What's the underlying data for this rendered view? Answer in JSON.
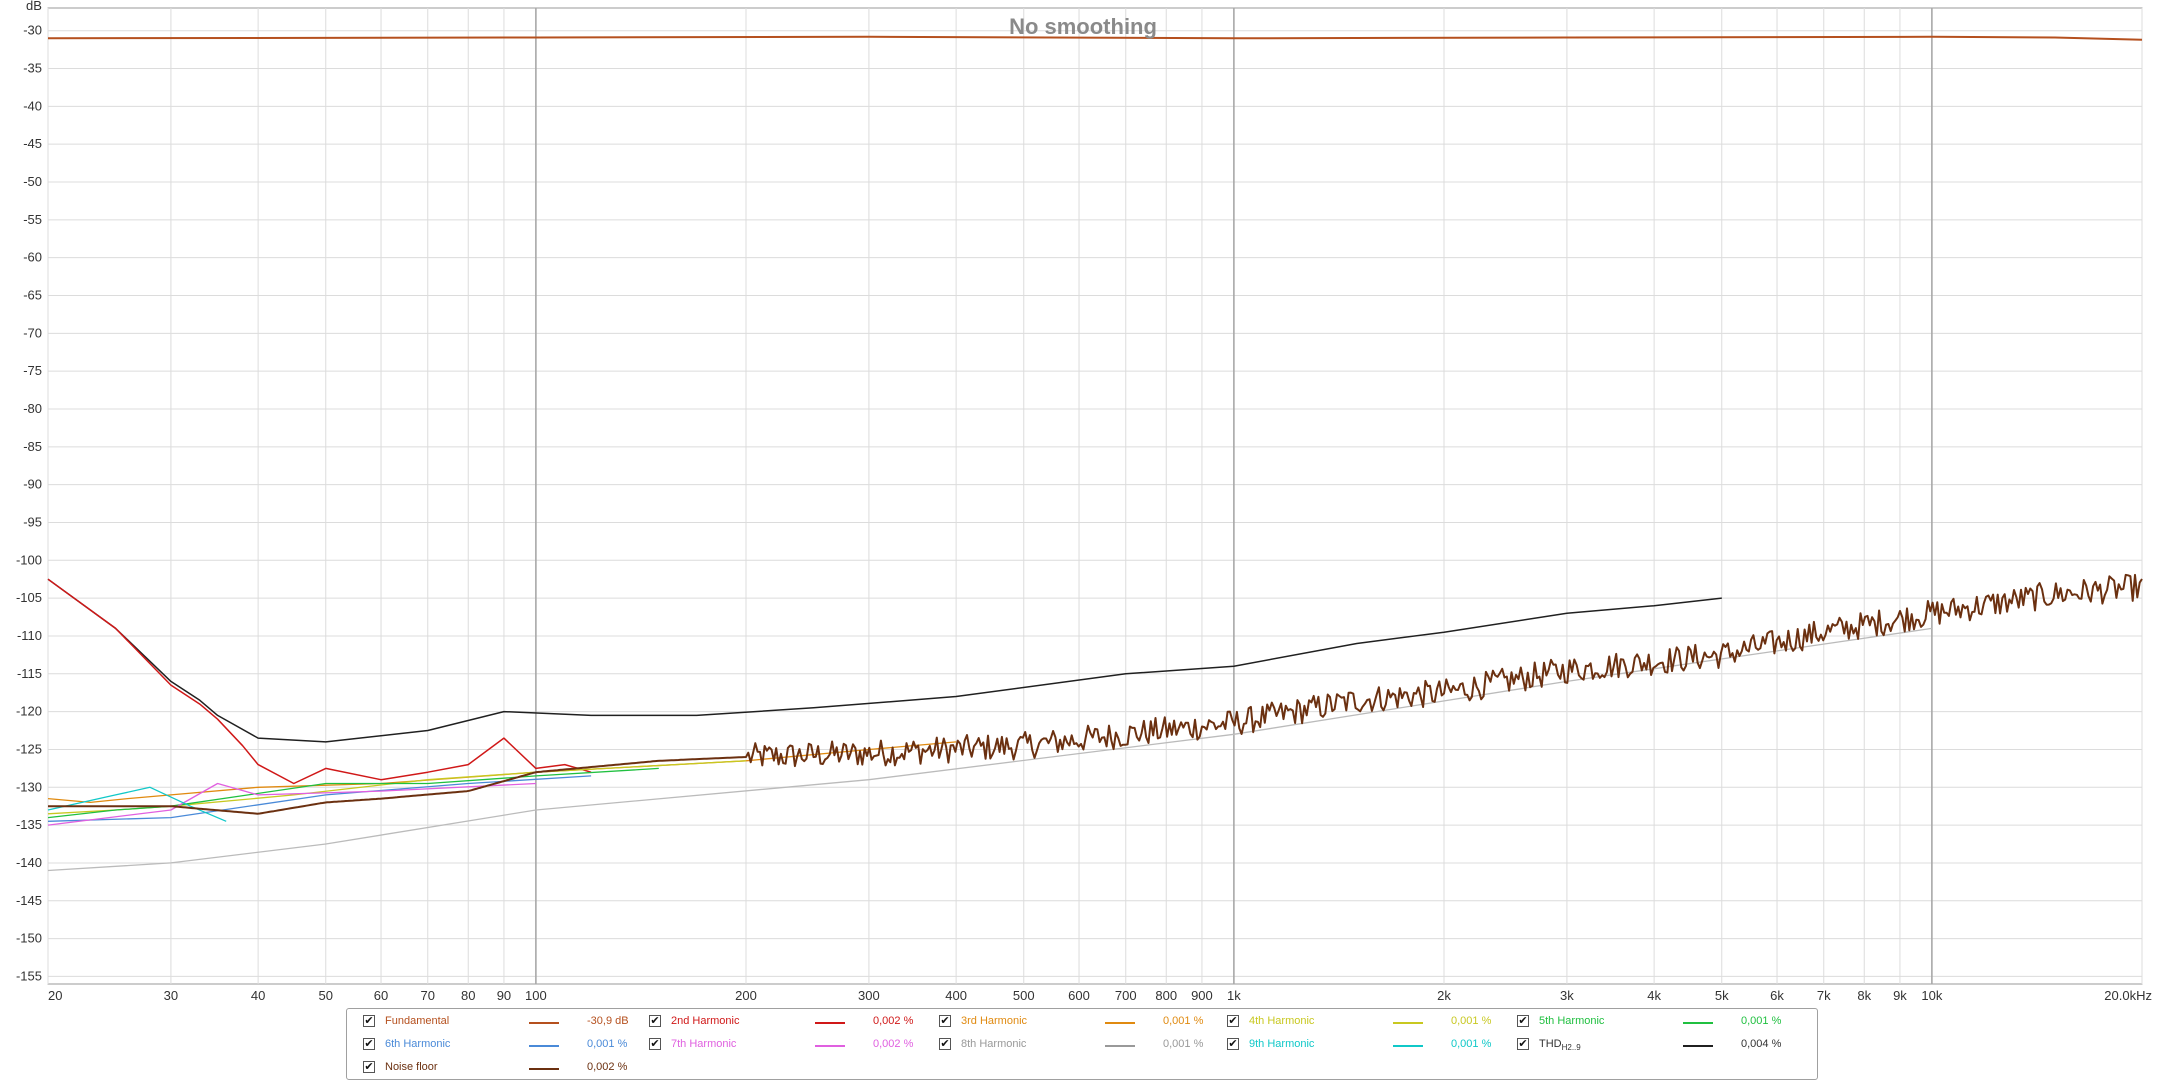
{
  "chart_data": {
    "type": "line",
    "title": "No smoothing",
    "ylabel": "dB",
    "xunit": "kHz",
    "xscale": "log",
    "xlim": [
      20,
      20000
    ],
    "ylim": [
      -156,
      -27
    ],
    "grid": true,
    "legend_position": "bottom",
    "y_ticks": [
      -30,
      -35,
      -40,
      -45,
      -50,
      -55,
      -60,
      -65,
      -70,
      -75,
      -80,
      -85,
      -90,
      -95,
      -100,
      -105,
      -110,
      -115,
      -120,
      -125,
      -130,
      -135,
      -140,
      -145,
      -150,
      -155
    ],
    "x_ticks": [
      {
        "value": 20,
        "label": "20"
      },
      {
        "value": 30,
        "label": "30"
      },
      {
        "value": 40,
        "label": "40"
      },
      {
        "value": 50,
        "label": "50"
      },
      {
        "value": 60,
        "label": "60"
      },
      {
        "value": 70,
        "label": "70"
      },
      {
        "value": 80,
        "label": "80"
      },
      {
        "value": 90,
        "label": "90"
      },
      {
        "value": 100,
        "label": "100"
      },
      {
        "value": 200,
        "label": "200"
      },
      {
        "value": 300,
        "label": "300"
      },
      {
        "value": 400,
        "label": "400"
      },
      {
        "value": 500,
        "label": "500"
      },
      {
        "value": 600,
        "label": "600"
      },
      {
        "value": 700,
        "label": "700"
      },
      {
        "value": 800,
        "label": "800"
      },
      {
        "value": 900,
        "label": "900"
      },
      {
        "value": 1000,
        "label": "1k"
      },
      {
        "value": 2000,
        "label": "2k"
      },
      {
        "value": 3000,
        "label": "3k"
      },
      {
        "value": 4000,
        "label": "4k"
      },
      {
        "value": 5000,
        "label": "5k"
      },
      {
        "value": 6000,
        "label": "6k"
      },
      {
        "value": 7000,
        "label": "7k"
      },
      {
        "value": 8000,
        "label": "8k"
      },
      {
        "value": 9000,
        "label": "9k"
      },
      {
        "value": 10000,
        "label": "10k"
      },
      {
        "value": 20000,
        "label": "20,0kHz"
      }
    ],
    "series": [
      {
        "name": "Fundamental",
        "color": "#b5501e",
        "width": 2,
        "x": [
          20,
          100,
          300,
          1000,
          3000,
          10000,
          15000,
          20000
        ],
        "y": [
          -31.0,
          -30.9,
          -30.8,
          -31.0,
          -30.9,
          -30.8,
          -30.9,
          -31.2
        ]
      },
      {
        "name": "Noise floor",
        "color": "#6b3010",
        "width": 2,
        "noise": 1.8,
        "x": [
          20,
          30,
          40,
          50,
          60,
          80,
          100,
          150,
          200,
          300,
          500,
          700,
          1000,
          1500,
          2000,
          3000,
          5000,
          7000,
          10000,
          15000,
          20000
        ],
        "y": [
          -132.5,
          -132.5,
          -133.5,
          -132.0,
          -131.5,
          -130.5,
          -128.0,
          -126.5,
          -126.0,
          -125.5,
          -124.5,
          -123.0,
          -121.5,
          -118.5,
          -117.5,
          -114.5,
          -112.5,
          -109.5,
          -107.0,
          -104.5,
          -103.5
        ]
      },
      {
        "name": "THD H2..9",
        "color": "#202020",
        "width": 1.5,
        "x": [
          20,
          25,
          30,
          33,
          35,
          40,
          50,
          70,
          90,
          120,
          170,
          250,
          400,
          700,
          1000,
          1500,
          2000,
          3000,
          4000,
          5000
        ],
        "y": [
          -102.5,
          -109.0,
          -116.0,
          -118.5,
          -120.5,
          -123.5,
          -124.0,
          -122.5,
          -120.0,
          -120.5,
          -120.5,
          -119.5,
          -118.0,
          -115.0,
          -114.0,
          -111.0,
          -109.5,
          -107.0,
          -106.0,
          -105.0
        ]
      },
      {
        "name": "2nd Harmonic",
        "color": "#d01818",
        "width": 1.5,
        "x": [
          20,
          25,
          30,
          33,
          35,
          38,
          40,
          45,
          50,
          60,
          70,
          80,
          90,
          100,
          110,
          120
        ],
        "y": [
          -102.5,
          -109.0,
          -116.5,
          -119.0,
          -121.0,
          -124.5,
          -127.0,
          -129.5,
          -127.5,
          -129.0,
          -128.0,
          -127.0,
          -123.5,
          -127.5,
          -127.0,
          -128.0
        ]
      },
      {
        "name": "3rd Harmonic",
        "color": "#e08a10",
        "width": 1.3,
        "x": [
          20,
          23,
          26,
          30,
          40,
          60,
          100,
          200,
          300,
          400
        ],
        "y": [
          -131.5,
          -132.0,
          -131.5,
          -131.0,
          -130.0,
          -129.5,
          -128.0,
          -126.5,
          -125.0,
          -124.0
        ]
      },
      {
        "name": "4th Harmonic",
        "color": "#c8c820",
        "width": 1.3,
        "x": [
          20,
          25,
          30,
          45,
          70,
          100,
          200
        ],
        "y": [
          -133.5,
          -133.0,
          -132.5,
          -131.0,
          -129.0,
          -128.0,
          -126.5
        ]
      },
      {
        "name": "5th Harmonic",
        "color": "#20c040",
        "width": 1.3,
        "x": [
          20,
          25,
          30,
          50,
          70,
          100,
          150
        ],
        "y": [
          -134.0,
          -133.0,
          -132.5,
          -129.5,
          -129.5,
          -128.5,
          -127.5
        ]
      },
      {
        "name": "6th Harmonic",
        "color": "#4a8ad8",
        "width": 1.3,
        "x": [
          20,
          30,
          50,
          80,
          120
        ],
        "y": [
          -134.5,
          -134.0,
          -131.0,
          -129.5,
          -128.5
        ]
      },
      {
        "name": "7th Harmonic",
        "color": "#e060e0",
        "width": 1.3,
        "x": [
          20,
          30,
          35,
          40,
          60,
          100
        ],
        "y": [
          -135.0,
          -133.0,
          -129.5,
          -131.0,
          -130.5,
          -129.5
        ]
      },
      {
        "name": "8th Harmonic",
        "color": "#bbbbbb",
        "width": 1.3,
        "x": [
          20,
          30,
          50,
          100,
          300,
          1000,
          3000,
          10000
        ],
        "y": [
          -141.0,
          -140.0,
          -137.5,
          -133.0,
          -129.0,
          -123.0,
          -116.0,
          -109.0
        ]
      },
      {
        "name": "9th Harmonic",
        "color": "#10c8c8",
        "width": 1.3,
        "x": [
          20,
          25,
          28,
          32,
          36
        ],
        "y": [
          -133.0,
          -131.0,
          -130.0,
          -132.5,
          -134.5
        ]
      }
    ]
  },
  "legend": {
    "items": [
      {
        "name": "Fundamental",
        "value": "-30,9 dB",
        "color": "#b5501e"
      },
      {
        "name": "2nd Harmonic",
        "value": "0,002 %",
        "color": "#d01818"
      },
      {
        "name": "3rd Harmonic",
        "value": "0,001 %",
        "color": "#e08a10"
      },
      {
        "name": "4th Harmonic",
        "value": "0,001 %",
        "color": "#c8c820"
      },
      {
        "name": "5th Harmonic",
        "value": "0,001 %",
        "color": "#20c040"
      },
      {
        "name": "6th Harmonic",
        "value": "0,001 %",
        "color": "#4a8ad8"
      },
      {
        "name": "7th Harmonic",
        "value": "0,002 %",
        "color": "#e060e0"
      },
      {
        "name": "8th Harmonic",
        "value": "0,001 %",
        "color": "#999999"
      },
      {
        "name": "9th Harmonic",
        "value": "0,001 %",
        "color": "#10c8c8"
      },
      {
        "name": "THD",
        "sub": "H2..9",
        "value": "0,004 %",
        "color": "#202020"
      },
      {
        "name": "Noise floor",
        "value": "0,002 %",
        "color": "#6b3010"
      }
    ]
  }
}
